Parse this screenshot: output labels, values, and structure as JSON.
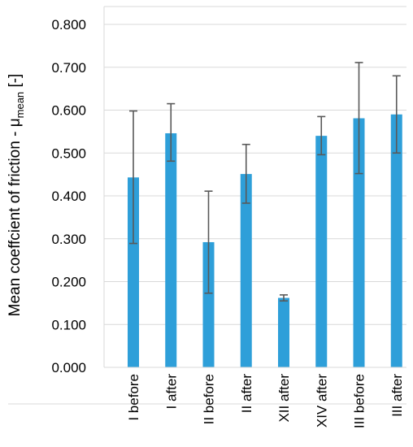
{
  "chart_data": {
    "type": "bar",
    "title": "",
    "ylabel": {
      "main": "Mean coeffcient of friction - μ",
      "subscript": "mean",
      "unit": " [-]"
    },
    "xlabel": "",
    "ylim": [
      0,
      0.8
    ],
    "yticks": [
      "0.000",
      "0.100",
      "0.200",
      "0.300",
      "0.400",
      "0.500",
      "0.600",
      "0.700",
      "0.800"
    ],
    "categories": [
      "I before",
      "I after",
      "II before",
      "II after",
      "XII after",
      "XIV after",
      "III before",
      "III after"
    ],
    "values": [
      0.443,
      0.546,
      0.292,
      0.451,
      0.162,
      0.54,
      0.581,
      0.59
    ],
    "error_low": [
      0.289,
      0.481,
      0.173,
      0.383,
      0.155,
      0.496,
      0.452,
      0.5
    ],
    "error_high": [
      0.598,
      0.615,
      0.411,
      0.52,
      0.169,
      0.585,
      0.711,
      0.68
    ],
    "grid": true,
    "colors": {
      "bar": "#2E9FD9",
      "error": "#595959",
      "grid": "#D9D9D9"
    }
  }
}
